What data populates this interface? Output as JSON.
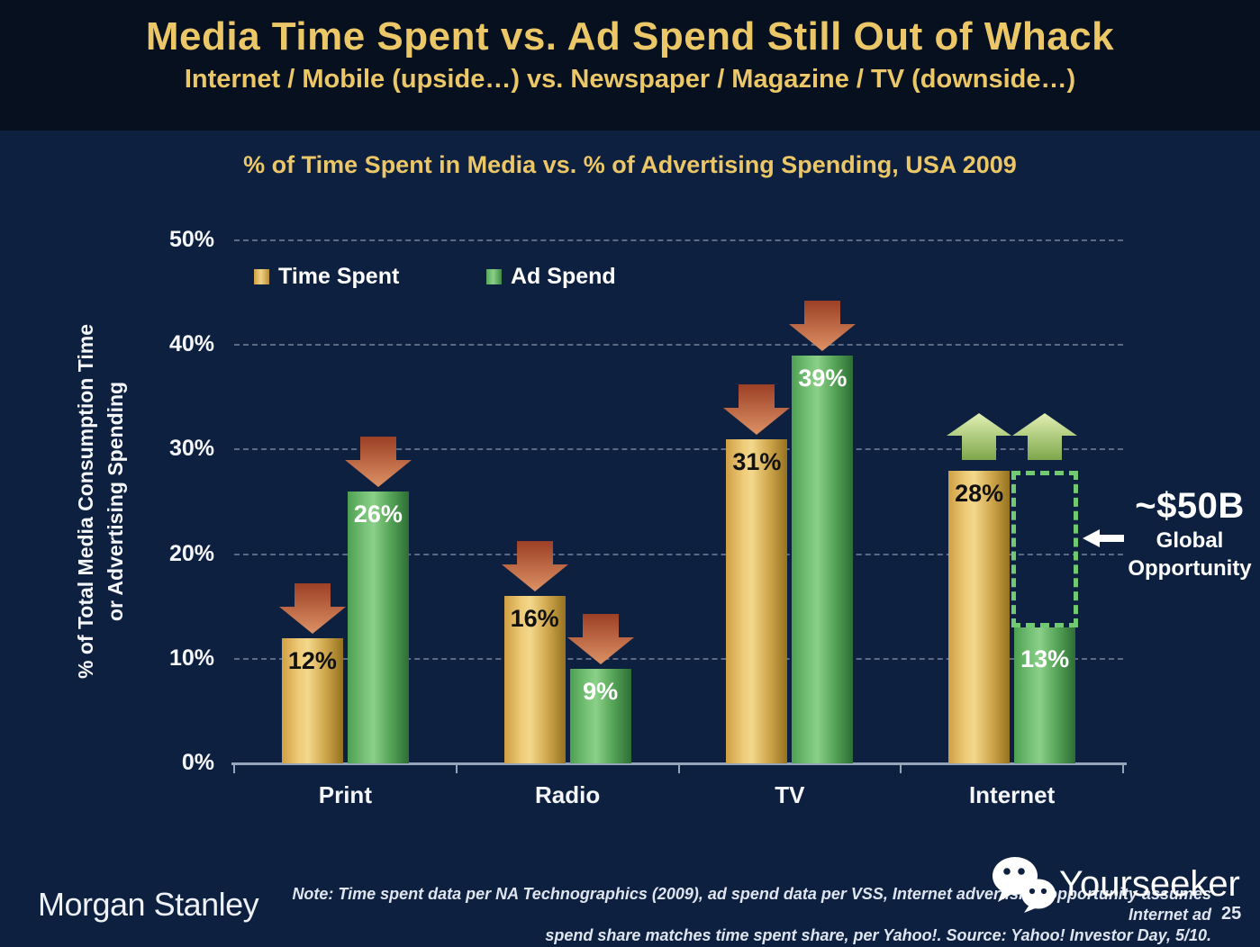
{
  "slide": {
    "title": "Media Time Spent vs. Ad Spend Still Out of Whack",
    "subtitle": "Internet / Mobile (upside…) vs. Newspaper / Magazine / TV (downside…)",
    "page_number": "25"
  },
  "chart_data": {
    "type": "bar",
    "title": "% of Time Spent in Media vs. % of Advertising Spending, USA 2009",
    "categories": [
      "Print",
      "Radio",
      "TV",
      "Internet"
    ],
    "series": [
      {
        "name": "Time Spent",
        "color": "#e0b558",
        "label_color": "#111111",
        "values": [
          12,
          16,
          31,
          28
        ]
      },
      {
        "name": "Ad Spend",
        "color": "#5fb35f",
        "label_color": "#ffffff",
        "values": [
          26,
          9,
          39,
          13
        ]
      }
    ],
    "value_label_format": "percent",
    "ylabel_line1": "% of Total Media Consumption Time",
    "ylabel_line2": "or Advertising Spending",
    "ylim": [
      0,
      50
    ],
    "yticks": [
      0,
      10,
      20,
      30,
      40,
      50
    ],
    "ytick_labels": [
      "0%",
      "10%",
      "20%",
      "30%",
      "40%",
      "50%"
    ],
    "grid": "dashed horizontal gridlines every 10%",
    "legend_position": "top-left inside plot",
    "trend_arrows": [
      [
        "down",
        "down"
      ],
      [
        "down",
        "down"
      ],
      [
        "down",
        "down"
      ],
      [
        "up",
        "up"
      ]
    ],
    "trend_arrow_colors": {
      "down": "#c05a36",
      "up": "#a8c86e"
    },
    "gap_highlight": {
      "category": "Internet",
      "series": "Ad Spend",
      "from": 13,
      "to": 28,
      "outline_color": "#71c971"
    },
    "annotation": {
      "value": "~$50B",
      "line1": "Global",
      "line2": "Opportunity",
      "arrow_direction": "left"
    }
  },
  "footer": {
    "logo": "Morgan Stanley",
    "note_line1": "Note: Time spent data per NA Technographics (2009), ad spend data per VSS, Internet advertising opportunity assumes Internet ad",
    "note_line2": "spend share matches time spent share, per Yahoo!. Source: Yahoo! Investor Day, 5/10.",
    "watermark": "Yourseeker"
  },
  "colors": {
    "background": "#0e2040",
    "header_background": "#06101f",
    "title_gold": "#ecc767",
    "bar_gold": "#e0b558",
    "bar_green": "#5fb35f",
    "down_arrow": "#c05a36",
    "up_arrow": "#a8c86e",
    "gridline": "#a8b6cc",
    "text_white": "#f4f6f9"
  }
}
